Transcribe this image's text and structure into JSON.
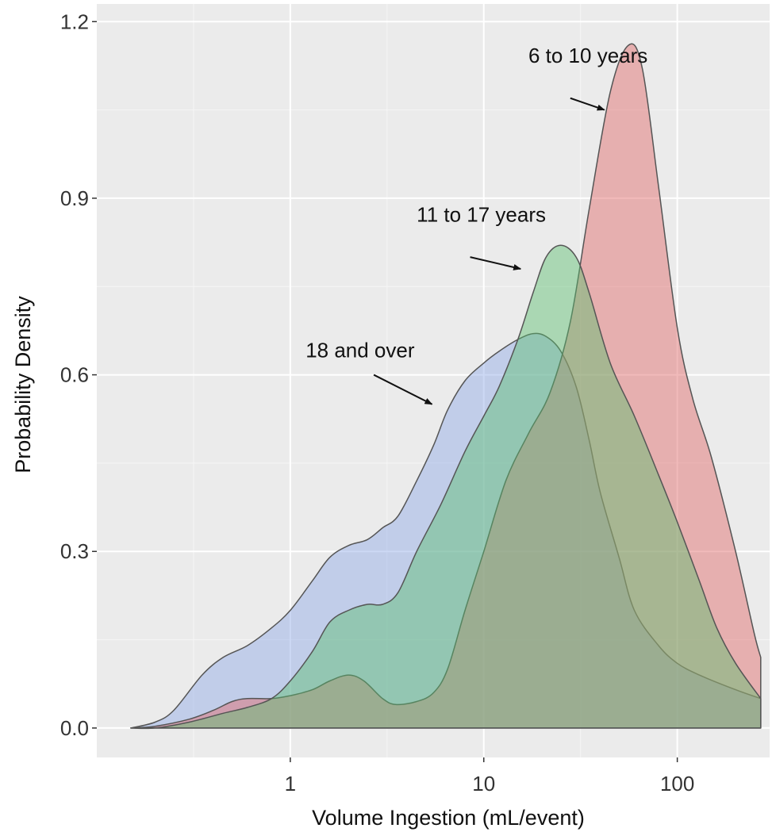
{
  "chart_data": {
    "type": "area",
    "xlabel": "Volume Ingestion (mL/event)",
    "ylabel": "Probability Density",
    "x_scale": "log10",
    "xlim": [
      0.1,
      300
    ],
    "ylim": [
      -0.05,
      1.23
    ],
    "x_ticks": [
      {
        "value": 1,
        "label": "1"
      },
      {
        "value": 10,
        "label": "10"
      },
      {
        "value": 100,
        "label": "100"
      }
    ],
    "y_ticks": [
      {
        "value": 0.0,
        "label": "0.0"
      },
      {
        "value": 0.3,
        "label": "0.3"
      },
      {
        "value": 0.6,
        "label": "0.6"
      },
      {
        "value": 0.9,
        "label": "0.9"
      },
      {
        "value": 1.2,
        "label": "1.2"
      }
    ],
    "grid": true,
    "background": "#ebebeb",
    "series": [
      {
        "color": "#8ea8e6",
        "points": [
          [
            0.15,
            0.0
          ],
          [
            0.2,
            0.01
          ],
          [
            0.25,
            0.03
          ],
          [
            0.35,
            0.09
          ],
          [
            0.45,
            0.12
          ],
          [
            0.6,
            0.14
          ],
          [
            0.8,
            0.17
          ],
          [
            1,
            0.2
          ],
          [
            1.3,
            0.25
          ],
          [
            1.6,
            0.29
          ],
          [
            2,
            0.31
          ],
          [
            2.5,
            0.32
          ],
          [
            3,
            0.34
          ],
          [
            3.6,
            0.36
          ],
          [
            4.5,
            0.42
          ],
          [
            5.5,
            0.48
          ],
          [
            6.5,
            0.54
          ],
          [
            8,
            0.59
          ],
          [
            10,
            0.62
          ],
          [
            12,
            0.64
          ],
          [
            15,
            0.66
          ],
          [
            18,
            0.67
          ],
          [
            21,
            0.665
          ],
          [
            25,
            0.64
          ],
          [
            30,
            0.58
          ],
          [
            35,
            0.49
          ],
          [
            40,
            0.4
          ],
          [
            50,
            0.29
          ],
          [
            60,
            0.2
          ],
          [
            80,
            0.14
          ],
          [
            100,
            0.11
          ],
          [
            130,
            0.09
          ],
          [
            200,
            0.065
          ],
          [
            270,
            0.05
          ],
          [
            270,
            0.0
          ]
        ]
      },
      {
        "color": "#e06666",
        "points": [
          [
            0.15,
            0.0
          ],
          [
            0.2,
            0.003
          ],
          [
            0.3,
            0.015
          ],
          [
            0.4,
            0.03
          ],
          [
            0.5,
            0.045
          ],
          [
            0.6,
            0.05
          ],
          [
            0.8,
            0.05
          ],
          [
            1,
            0.055
          ],
          [
            1.3,
            0.065
          ],
          [
            1.6,
            0.08
          ],
          [
            2,
            0.09
          ],
          [
            2.4,
            0.08
          ],
          [
            3,
            0.05
          ],
          [
            3.5,
            0.04
          ],
          [
            4.5,
            0.045
          ],
          [
            5.5,
            0.06
          ],
          [
            6.5,
            0.1
          ],
          [
            8,
            0.2
          ],
          [
            10,
            0.3
          ],
          [
            13,
            0.42
          ],
          [
            17,
            0.5
          ],
          [
            22,
            0.57
          ],
          [
            28,
            0.69
          ],
          [
            35,
            0.88
          ],
          [
            45,
            1.08
          ],
          [
            56,
            1.16
          ],
          [
            66,
            1.12
          ],
          [
            80,
            0.92
          ],
          [
            100,
            0.68
          ],
          [
            120,
            0.56
          ],
          [
            150,
            0.46
          ],
          [
            200,
            0.3
          ],
          [
            250,
            0.16
          ],
          [
            270,
            0.12
          ],
          [
            270,
            0.0
          ]
        ]
      },
      {
        "color": "#5bbf6e",
        "points": [
          [
            0.15,
            0.0
          ],
          [
            0.2,
            0.0
          ],
          [
            0.3,
            0.01
          ],
          [
            0.45,
            0.025
          ],
          [
            0.6,
            0.035
          ],
          [
            0.8,
            0.05
          ],
          [
            1,
            0.08
          ],
          [
            1.3,
            0.13
          ],
          [
            1.6,
            0.18
          ],
          [
            2,
            0.2
          ],
          [
            2.5,
            0.21
          ],
          [
            3,
            0.21
          ],
          [
            3.6,
            0.23
          ],
          [
            4.5,
            0.3
          ],
          [
            6,
            0.38
          ],
          [
            8,
            0.47
          ],
          [
            10,
            0.53
          ],
          [
            12,
            0.58
          ],
          [
            15,
            0.66
          ],
          [
            18,
            0.74
          ],
          [
            21,
            0.8
          ],
          [
            25,
            0.82
          ],
          [
            30,
            0.8
          ],
          [
            35,
            0.74
          ],
          [
            45,
            0.62
          ],
          [
            60,
            0.53
          ],
          [
            80,
            0.43
          ],
          [
            100,
            0.35
          ],
          [
            130,
            0.25
          ],
          [
            160,
            0.17
          ],
          [
            200,
            0.11
          ],
          [
            270,
            0.05
          ],
          [
            270,
            0.0
          ]
        ]
      }
    ],
    "annotations": [
      {
        "text": "6 to 10 years",
        "x": 17,
        "y": 1.13,
        "arrow_from": [
          28,
          1.07
        ],
        "arrow_to": [
          42,
          1.05
        ]
      },
      {
        "text": "11 to 17 years",
        "x": 4.5,
        "y": 0.86,
        "arrow_from": [
          8.5,
          0.8
        ],
        "arrow_to": [
          15.5,
          0.78
        ]
      },
      {
        "text": "18 and over",
        "x": 1.2,
        "y": 0.63,
        "arrow_from": [
          2.7,
          0.6
        ],
        "arrow_to": [
          5.4,
          0.55
        ]
      }
    ]
  }
}
